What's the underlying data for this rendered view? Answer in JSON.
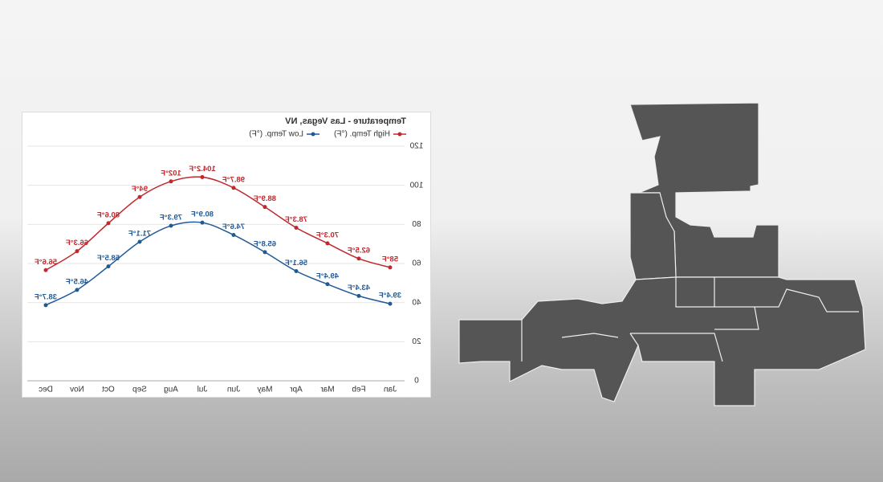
{
  "chart_data": {
    "type": "line",
    "title": "Temperature - Las Vegas, NV",
    "categories": [
      "Jan",
      "Feb",
      "Mar",
      "Apr",
      "May",
      "Jun",
      "Jul",
      "Aug",
      "Sep",
      "Oct",
      "Nov",
      "Dec"
    ],
    "series": [
      {
        "name": "High Temp. (°F)",
        "color": "#c0282d",
        "values": [
          58,
          62.5,
          70.3,
          78.3,
          88.9,
          98.7,
          104.2,
          102,
          94,
          80.6,
          66.3,
          56.6
        ],
        "value_labels": [
          "58°F",
          "62.5°F",
          "70.3°F",
          "78.3°F",
          "88.9°F",
          "98.7°F",
          "104.2°F",
          "102°F",
          "94°F",
          "80.6°F",
          "66.3°F",
          "56.6°F"
        ]
      },
      {
        "name": "Low Temp. (°F)",
        "color": "#1f5a96",
        "values": [
          39.4,
          43.4,
          49.4,
          56.1,
          65.8,
          74.6,
          80.9,
          79.3,
          71.1,
          58.5,
          46.5,
          38.7
        ],
        "value_labels": [
          "39.4°F",
          "43.4°F",
          "49.4°F",
          "56.1°F",
          "65.8°F",
          "74.6°F",
          "80.9°F",
          "79.3°F",
          "71.1°F",
          "58.5°F",
          "46.5°F",
          "38.7°F"
        ]
      }
    ],
    "ylim": [
      0,
      120
    ],
    "yticks": [
      0,
      20,
      40,
      60,
      80,
      100,
      120
    ],
    "grid": true,
    "legend": "top-left",
    "mirrored": true
  }
}
